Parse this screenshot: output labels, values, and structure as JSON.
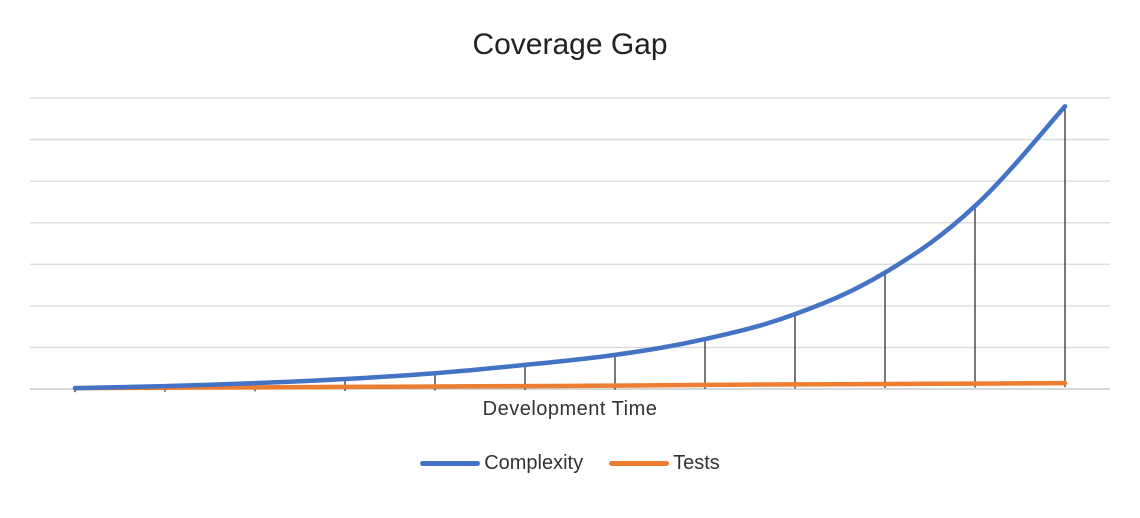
{
  "chart_data": {
    "type": "line",
    "title": "Coverage Gap",
    "xlabel": "Development Time",
    "ylabel": "",
    "grid": true,
    "legend": "bottom",
    "x": [
      1,
      2,
      3,
      4,
      5,
      6,
      7,
      8,
      9,
      10,
      11,
      12
    ],
    "ylim": [
      0,
      35
    ],
    "drop_lines": true,
    "series": [
      {
        "name": "Complexity",
        "color": "#4472C4",
        "values": [
          0.1,
          0.35,
          0.7,
          1.2,
          1.9,
          2.9,
          4.1,
          6.0,
          9.0,
          14.0,
          22.0,
          34.0
        ]
      },
      {
        "name": "Tests",
        "color": "#ED7D31",
        "values": [
          0.1,
          0.15,
          0.2,
          0.25,
          0.3,
          0.35,
          0.4,
          0.5,
          0.55,
          0.6,
          0.65,
          0.7
        ]
      }
    ]
  }
}
